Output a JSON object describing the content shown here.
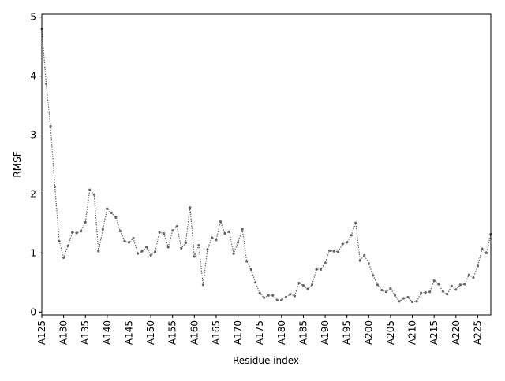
{
  "chart_data": {
    "type": "line",
    "title": "",
    "xlabel": "Residue index",
    "ylabel": "RMSF",
    "x_start": 125,
    "x_prefix": "A",
    "xlim": [
      125,
      228
    ],
    "ylim": [
      -0.05,
      5.05
    ],
    "yticks": [
      0,
      1,
      2,
      3,
      4,
      5
    ],
    "xticks": [
      "A125",
      "A130",
      "A135",
      "A140",
      "A145",
      "A150",
      "A155",
      "A160",
      "A165",
      "A170",
      "A175",
      "A180",
      "A185",
      "A190",
      "A195",
      "A200",
      "A205",
      "A210",
      "A215",
      "A220",
      "A225"
    ],
    "grid": false,
    "line_style": "dotted",
    "marker": "dot",
    "color": "#666666",
    "values": [
      4.8,
      3.87,
      3.15,
      2.12,
      1.2,
      0.92,
      1.12,
      1.35,
      1.34,
      1.37,
      1.52,
      2.07,
      1.99,
      1.03,
      1.4,
      1.75,
      1.68,
      1.6,
      1.37,
      1.2,
      1.18,
      1.25,
      0.99,
      1.03,
      1.1,
      0.96,
      1.02,
      1.35,
      1.33,
      1.1,
      1.38,
      1.45,
      1.08,
      1.17,
      1.77,
      0.94,
      1.13,
      0.46,
      1.06,
      1.26,
      1.22,
      1.53,
      1.33,
      1.36,
      0.99,
      1.18,
      1.4,
      0.86,
      0.72,
      0.5,
      0.32,
      0.24,
      0.28,
      0.28,
      0.2,
      0.2,
      0.25,
      0.3,
      0.27,
      0.49,
      0.45,
      0.39,
      0.46,
      0.72,
      0.72,
      0.83,
      1.04,
      1.03,
      1.02,
      1.15,
      1.18,
      1.3,
      1.51,
      0.87,
      0.96,
      0.82,
      0.62,
      0.46,
      0.37,
      0.34,
      0.4,
      0.28,
      0.18,
      0.23,
      0.25,
      0.17,
      0.18,
      0.32,
      0.33,
      0.34,
      0.53,
      0.47,
      0.35,
      0.3,
      0.44,
      0.38,
      0.46,
      0.47,
      0.63,
      0.58,
      0.78,
      1.07,
      1.0,
      1.32
    ]
  }
}
